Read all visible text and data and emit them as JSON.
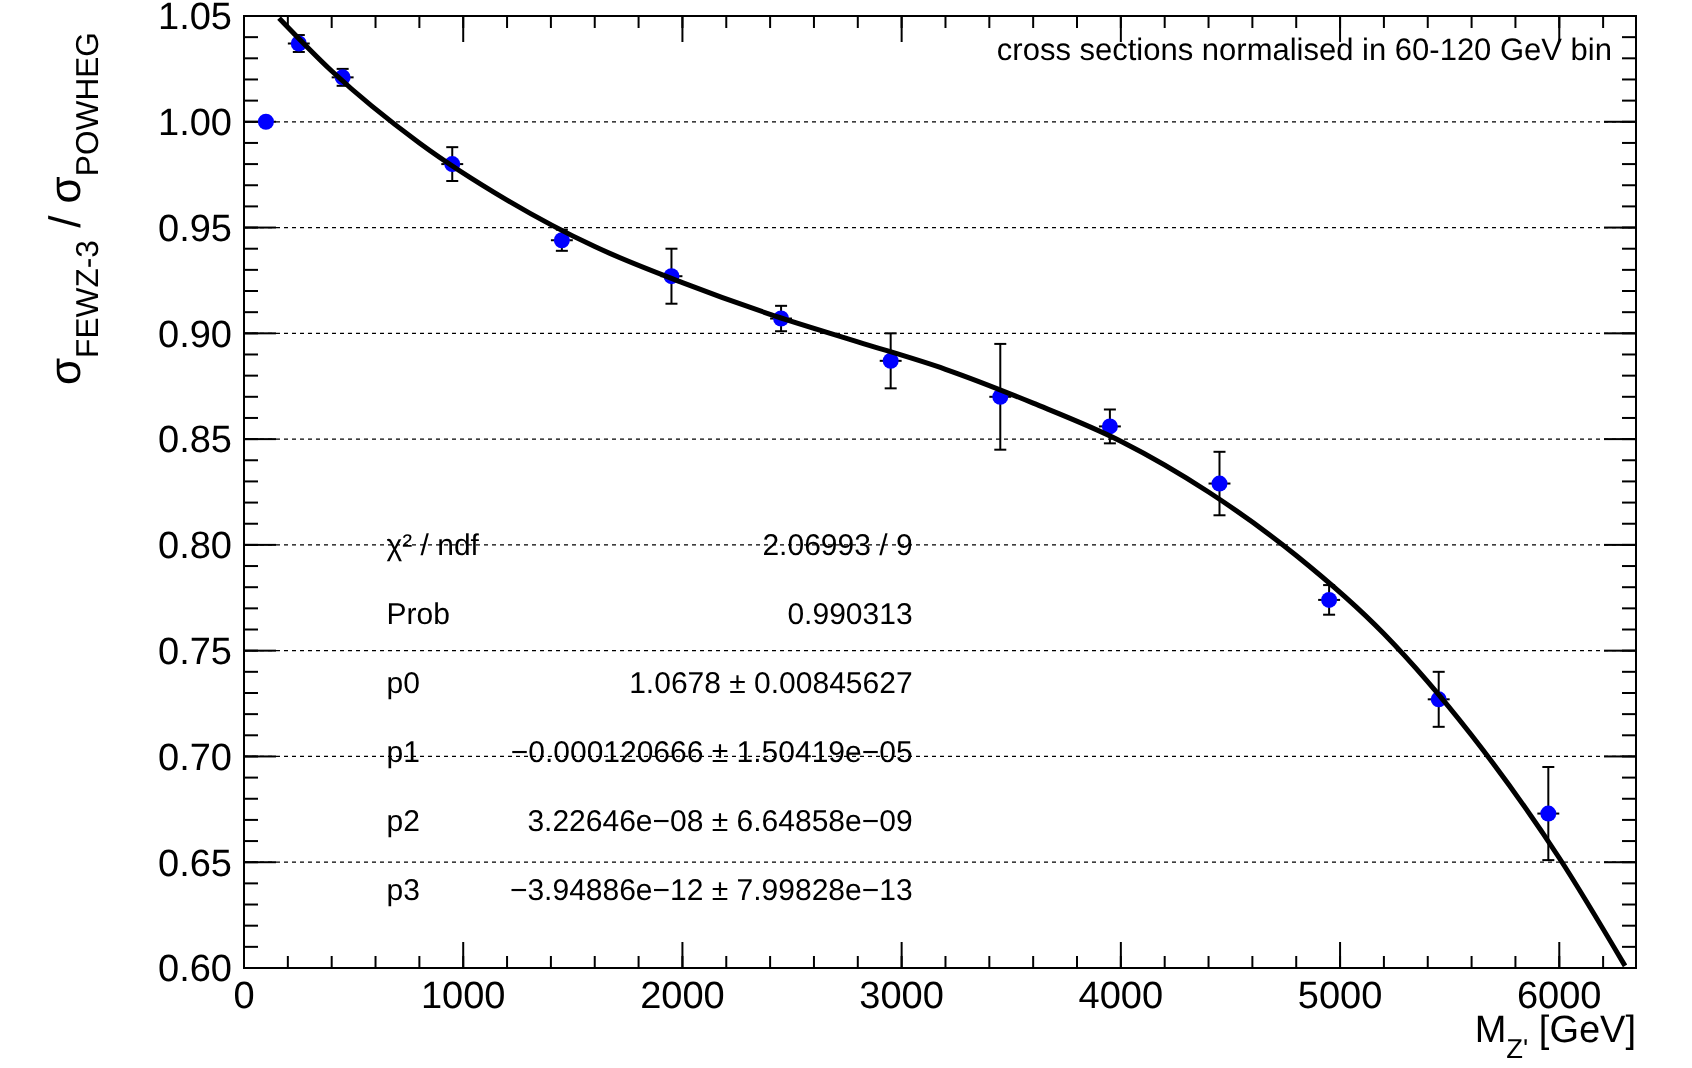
{
  "chart_data": {
    "type": "scatter",
    "ylabel": "σ$_{FEWZ-3}$ / σ$_{POWHEG}$",
    "xlabel": "M$_{Z'}$ [GeV]",
    "annotations": [
      "cross sections normalised in 60-120 GeV bin",
      "χ² / ndf",
      "2.06993 / 9",
      "Prob",
      "0.990313",
      "p0",
      "1.0678 ± 0.00845627",
      "p1",
      "−0.000120666 ± 1.50419e−05",
      "p2",
      "3.22646e−08 ± 6.64858e−09",
      "p3",
      "−3.94886e−12 ± 7.99828e−13"
    ],
    "xlim": [
      0,
      6350
    ],
    "xticks": [
      0,
      1000,
      2000,
      3000,
      4000,
      5000,
      6000
    ],
    "ylim": [
      0.6,
      1.05
    ],
    "yticks": [
      {
        "value": 0.6,
        "label": "0.60"
      },
      {
        "value": 0.65,
        "label": "0.65"
      },
      {
        "value": 0.7,
        "label": "0.70"
      },
      {
        "value": 0.75,
        "label": "0.75"
      },
      {
        "value": 0.8,
        "label": "0.80"
      },
      {
        "value": 0.85,
        "label": "0.85"
      },
      {
        "value": 0.9,
        "label": "0.90"
      },
      {
        "value": 0.95,
        "label": "0.95"
      },
      {
        "value": 1.0,
        "label": "1.00"
      },
      {
        "value": 1.05,
        "label": "1.05"
      }
    ],
    "grid": "y",
    "series": [
      {
        "marker": "circle",
        "color": "#0000ff",
        "x": [
          100,
          250,
          450,
          950,
          1450,
          1950,
          2450,
          2950,
          3450,
          3950,
          4450,
          4950,
          5450,
          5950
        ],
        "values": [
          1.0,
          1.037,
          1.021,
          0.98,
          0.944,
          0.927,
          0.907,
          0.887,
          0.87,
          0.856,
          0.829,
          0.774,
          0.727,
          0.673
        ],
        "errors": [
          null,
          0.004,
          0.004,
          0.008,
          0.005,
          0.013,
          0.006,
          0.013,
          0.025,
          0.008,
          0.015,
          0.007,
          0.013,
          0.022
        ],
        "xerrors": [
          null,
          50,
          50,
          50,
          50,
          50,
          50,
          50,
          50,
          50,
          50,
          50,
          50,
          50
        ]
      },
      {
        "type": "line",
        "color": "#000000",
        "line_style": "solid",
        "x": [
          160,
          400,
          800,
          1200,
          1600,
          2000,
          2400,
          2800,
          3200,
          3600,
          4000,
          4400,
          4800,
          5200,
          5600,
          6000,
          6300
        ],
        "values": [
          1.049,
          1.024,
          0.99,
          0.963,
          0.941,
          0.924,
          0.909,
          0.896,
          0.883,
          0.867,
          0.849,
          0.825,
          0.795,
          0.758,
          0.71,
          0.652,
          0.601
        ]
      }
    ]
  }
}
